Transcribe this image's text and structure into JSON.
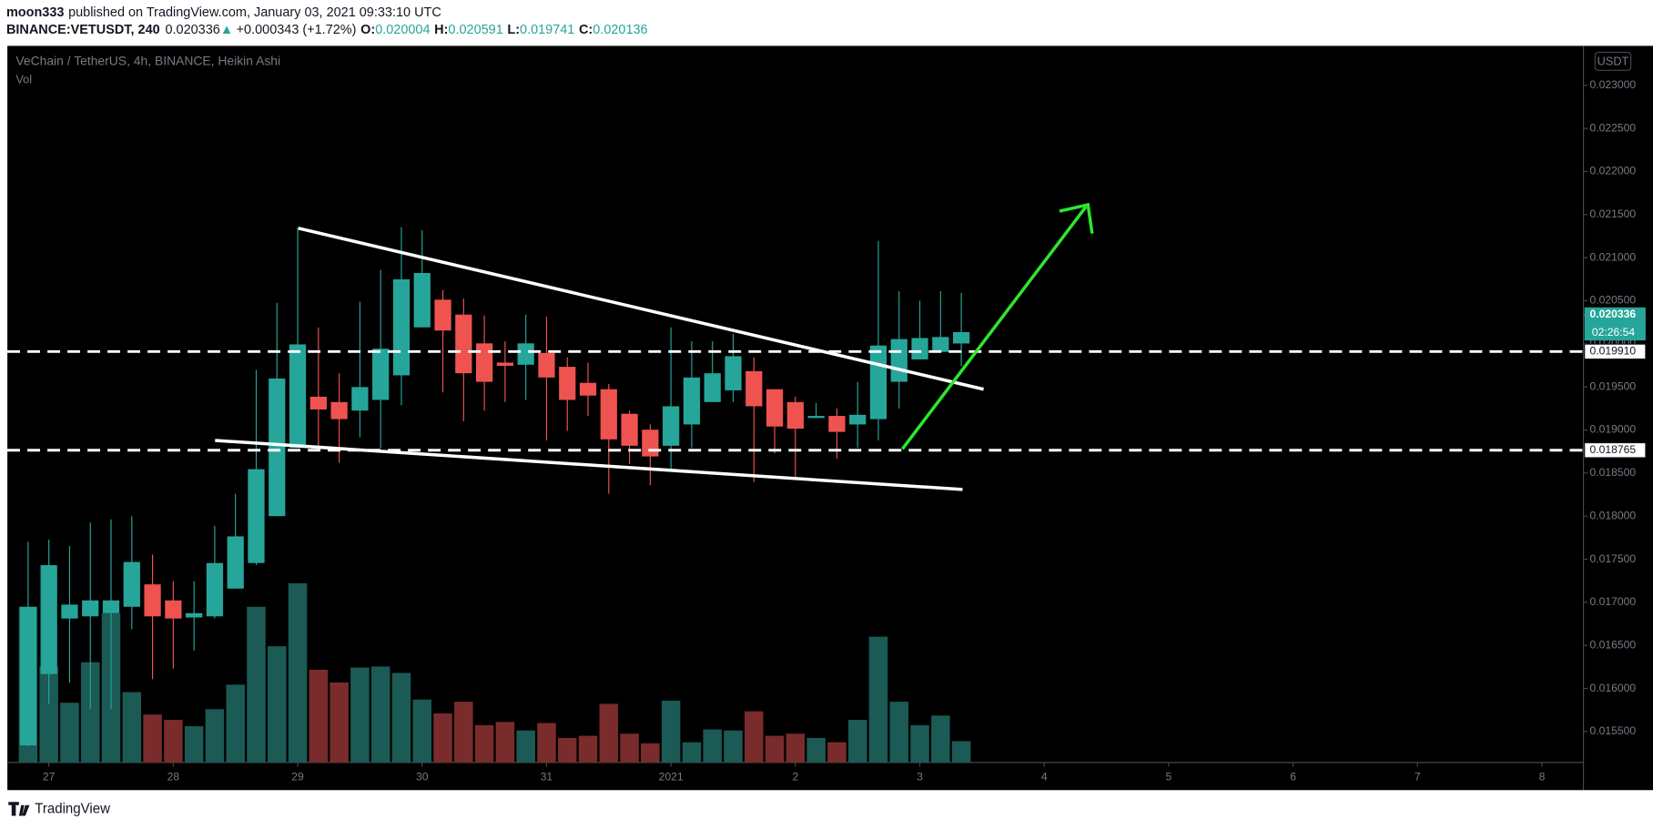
{
  "header": {
    "author": "moon333",
    "published": "published on TradingView.com, January 03, 2021 09:33:10 UTC",
    "symbol": "BINANCE:VETUSDT, 240",
    "change_arrow": "▲",
    "change": "+0.000343 (+1.72%)",
    "o_label": "O:",
    "h_label": "H:",
    "l_label": "L:",
    "c_label": "C:"
  },
  "footer": {
    "brand": "TradingView"
  },
  "chart_data": {
    "type": "candlestick",
    "title": "VeChain / TetherUS, 4h, BINANCE, Heikin Ashi",
    "volume_label": "Vol",
    "currency": "USDT",
    "xlim": [
      -1,
      75
    ],
    "xticks": [
      {
        "value": 1,
        "label": "27"
      },
      {
        "value": 7,
        "label": "28"
      },
      {
        "value": 13,
        "label": "29"
      },
      {
        "value": 19,
        "label": "30"
      },
      {
        "value": 25,
        "label": "31"
      },
      {
        "value": 31,
        "label": "2021"
      },
      {
        "value": 37,
        "label": "2"
      },
      {
        "value": 43,
        "label": "3"
      },
      {
        "value": 49,
        "label": "4"
      },
      {
        "value": 55,
        "label": "5"
      },
      {
        "value": 61,
        "label": "6"
      },
      {
        "value": 67,
        "label": "7"
      },
      {
        "value": 73,
        "label": "8"
      }
    ],
    "ylim": [
      0.015141,
      0.023458
    ],
    "yticks": [
      {
        "value": 0.0155,
        "label": "0.015500"
      },
      {
        "value": 0.016,
        "label": "0.016000"
      },
      {
        "value": 0.0165,
        "label": "0.016500"
      },
      {
        "value": 0.017,
        "label": "0.017000"
      },
      {
        "value": 0.0175,
        "label": "0.017500"
      },
      {
        "value": 0.018,
        "label": "0.018000"
      },
      {
        "value": 0.0185,
        "label": "0.018500"
      },
      {
        "value": 0.019,
        "label": "0.019000"
      },
      {
        "value": 0.0195,
        "label": "0.019500"
      },
      {
        "value": 0.02,
        "label": "0.020000"
      },
      {
        "value": 0.0205,
        "label": "0.020500"
      },
      {
        "value": 0.021,
        "label": "0.021000"
      },
      {
        "value": 0.0215,
        "label": "0.021500"
      },
      {
        "value": 0.022,
        "label": "0.022000"
      },
      {
        "value": 0.0225,
        "label": "0.022500"
      },
      {
        "value": 0.023,
        "label": "0.023000"
      }
    ],
    "grid": false,
    "up_color": "#26a69a",
    "down_color": "#ef5350",
    "volume_up_color": "#1b5a55",
    "volume_down_color": "#7a2b2b",
    "candles": {
      "open": [
        0.015339,
        0.016168,
        0.016812,
        0.016837,
        0.016874,
        0.016948,
        0.017208,
        0.017022,
        0.016824,
        0.016837,
        0.017159,
        0.017456,
        0.018,
        0.018792,
        0.019386,
        0.019324,
        0.019225,
        0.019349,
        0.019634,
        0.020191,
        0.020512,
        0.020339,
        0.020005,
        0.019782,
        0.019757,
        0.019894,
        0.019733,
        0.019547,
        0.019473,
        0.019188,
        0.019003,
        0.018817,
        0.019064,
        0.019324,
        0.01946,
        0.019683,
        0.019473,
        0.019324,
        0.019139,
        0.019163,
        0.019064,
        0.019126,
        0.019559,
        0.019819,
        0.019906,
        0.020004
      ],
      "high": [
        0.017703,
        0.017728,
        0.017654,
        0.017926,
        0.017963,
        0.018,
        0.017555,
        0.017245,
        0.017245,
        0.017889,
        0.01826,
        0.019696,
        0.020475,
        0.021354,
        0.020191,
        0.019658,
        0.020488,
        0.020859,
        0.021354,
        0.021317,
        0.020624,
        0.020525,
        0.020327,
        0.02003,
        0.020339,
        0.020314,
        0.019844,
        0.019782,
        0.019535,
        0.019225,
        0.019064,
        0.020191,
        0.02003,
        0.02003,
        0.020116,
        0.019844,
        0.019473,
        0.019386,
        0.019312,
        0.01925,
        0.019559,
        0.021193,
        0.020611,
        0.0205,
        0.020611,
        0.020591
      ],
      "low": [
        0.015327,
        0.015822,
        0.016069,
        0.01576,
        0.01576,
        0.016688,
        0.016107,
        0.01623,
        0.016441,
        0.016812,
        0.017159,
        0.017431,
        0.018,
        0.018792,
        0.018817,
        0.018619,
        0.018916,
        0.018792,
        0.019287,
        0.020191,
        0.019436,
        0.019102,
        0.019225,
        0.019324,
        0.019349,
        0.018879,
        0.01899,
        0.019163,
        0.01826,
        0.018607,
        0.018359,
        0.018545,
        0.018792,
        0.019324,
        0.019324,
        0.018396,
        0.01873,
        0.018458,
        0.019139,
        0.018668,
        0.018792,
        0.018879,
        0.01925,
        0.019819,
        0.019906,
        0.019741
      ],
      "close": [
        0.016948,
        0.017431,
        0.016973,
        0.017022,
        0.017022,
        0.017468,
        0.016837,
        0.016812,
        0.016874,
        0.017456,
        0.017765,
        0.018545,
        0.019597,
        0.019993,
        0.019238,
        0.019126,
        0.019498,
        0.019943,
        0.020748,
        0.020822,
        0.020154,
        0.019658,
        0.019559,
        0.019745,
        0.020005,
        0.019609,
        0.019349,
        0.019399,
        0.018891,
        0.018817,
        0.018693,
        0.019275,
        0.019609,
        0.019658,
        0.019856,
        0.019275,
        0.01904,
        0.019015,
        0.019163,
        0.018978,
        0.019176,
        0.01998,
        0.020055,
        0.020067,
        0.020079,
        0.020136
      ]
    },
    "volume": [
      146,
      90,
      56,
      94,
      140,
      66,
      45,
      40,
      34,
      50,
      73,
      146,
      109,
      168,
      87,
      75,
      89,
      90,
      84,
      59,
      46,
      57,
      35,
      38,
      30,
      37,
      23,
      25,
      55,
      27,
      18,
      58,
      19,
      31,
      30,
      48,
      25,
      27,
      23,
      19,
      40,
      118,
      57,
      35,
      44,
      20
    ],
    "price_lines": [
      {
        "value": 0.01991,
        "label": "0.019910"
      },
      {
        "value": 0.018765,
        "label": "0.018765"
      }
    ],
    "last_price": 0.020336,
    "countdown": "02:26:54"
  }
}
